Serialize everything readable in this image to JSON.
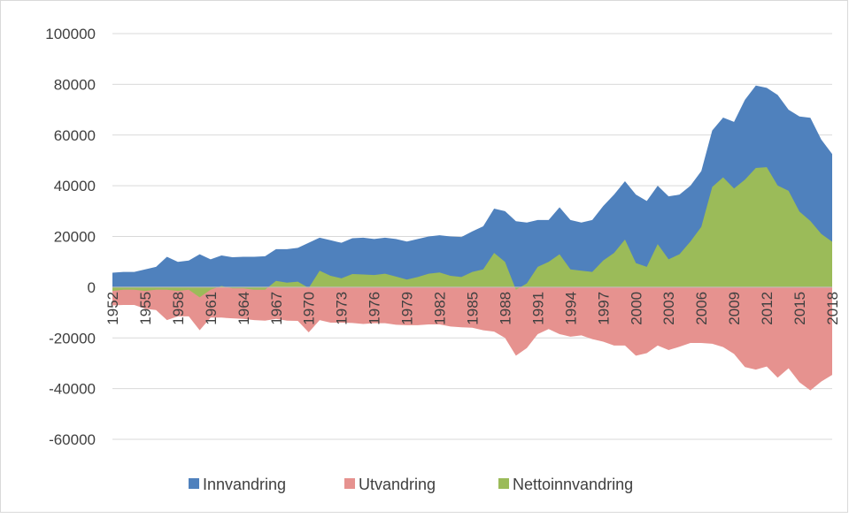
{
  "chart_data": {
    "type": "area",
    "categories": [
      "1952",
      null,
      null,
      "1955",
      null,
      null,
      "1958",
      null,
      null,
      "1961",
      null,
      null,
      "1964",
      null,
      null,
      "1967",
      null,
      null,
      "1970",
      null,
      null,
      "1973",
      null,
      null,
      "1976",
      null,
      null,
      "1979",
      null,
      null,
      "1982",
      null,
      null,
      "1985",
      null,
      null,
      "1988",
      null,
      null,
      "1991",
      null,
      null,
      "1994",
      null,
      null,
      "1997",
      null,
      null,
      "2000",
      null,
      null,
      "2003",
      null,
      null,
      "2006",
      null,
      null,
      "2009",
      null,
      null,
      "2012",
      null,
      null,
      "2015",
      null,
      null,
      "2018"
    ],
    "series": [
      {
        "name": "Innvandring",
        "color": "#4f81bd",
        "values": [
          5700,
          6000,
          6000,
          7000,
          8000,
          12000,
          10000,
          10500,
          13000,
          11000,
          12500,
          11800,
          12000,
          12000,
          12200,
          15000,
          15000,
          15500,
          17500,
          19500,
          18500,
          17500,
          19300,
          19500,
          19000,
          19500,
          19000,
          18000,
          19000,
          20000,
          20500,
          20000,
          19800,
          22000,
          24000,
          31000,
          30000,
          26000,
          25500,
          26500,
          26500,
          31500,
          26500,
          25500,
          26500,
          32000,
          36500,
          41800,
          36500,
          34000,
          40000,
          35800,
          36500,
          40000,
          45800,
          61800,
          66900,
          65200,
          73900,
          79500,
          78600,
          75800,
          70000,
          67300,
          66800,
          58200,
          52500
        ]
      },
      {
        "name": "Utvandring",
        "color": "#e6928f",
        "values": [
          -7200,
          -7000,
          -7000,
          -8500,
          -9000,
          -13000,
          -11500,
          -11500,
          -17000,
          -12000,
          -12000,
          -12300,
          -12500,
          -13000,
          -13200,
          -12500,
          -13200,
          -13300,
          -17800,
          -13000,
          -14000,
          -14000,
          -14100,
          -14500,
          -14200,
          -14200,
          -14800,
          -15000,
          -15000,
          -14700,
          -14700,
          -15500,
          -15800,
          -16000,
          -17000,
          -17500,
          -20000,
          -27000,
          -24000,
          -18500,
          -16500,
          -18500,
          -19500,
          -19000,
          -20500,
          -21500,
          -23000,
          -23000,
          -27000,
          -26000,
          -23000,
          -24800,
          -23500,
          -22000,
          -22000,
          -22300,
          -23600,
          -26300,
          -31500,
          -32500,
          -31300,
          -35700,
          -32000,
          -37500,
          -40700,
          -37200,
          -34600
        ]
      },
      {
        "name": "Nettoinnvandring",
        "color": "#9bbb59",
        "values": [
          -1500,
          -1000,
          -1000,
          -1500,
          -1000,
          -1000,
          -1500,
          -1000,
          -4000,
          -1000,
          500,
          -500,
          -500,
          -1000,
          -1000,
          2500,
          1800,
          2200,
          -300,
          6500,
          4500,
          3500,
          5200,
          5000,
          4800,
          5300,
          4200,
          3000,
          4000,
          5300,
          5800,
          4500,
          4000,
          6000,
          7000,
          13500,
          10000,
          -1000,
          1500,
          8000,
          10000,
          13000,
          7000,
          6500,
          6000,
          10500,
          13500,
          18800,
          9500,
          8000,
          17000,
          11000,
          13000,
          18000,
          23800,
          39500,
          43300,
          38900,
          42400,
          47000,
          47300,
          40100,
          38000,
          29800,
          26100,
          21000,
          17900
        ]
      }
    ],
    "ylim": [
      -60000,
      100000
    ],
    "yticks": [
      -60000,
      -40000,
      -20000,
      0,
      20000,
      40000,
      60000,
      80000,
      100000
    ],
    "grid": true,
    "legend": "bottom"
  }
}
